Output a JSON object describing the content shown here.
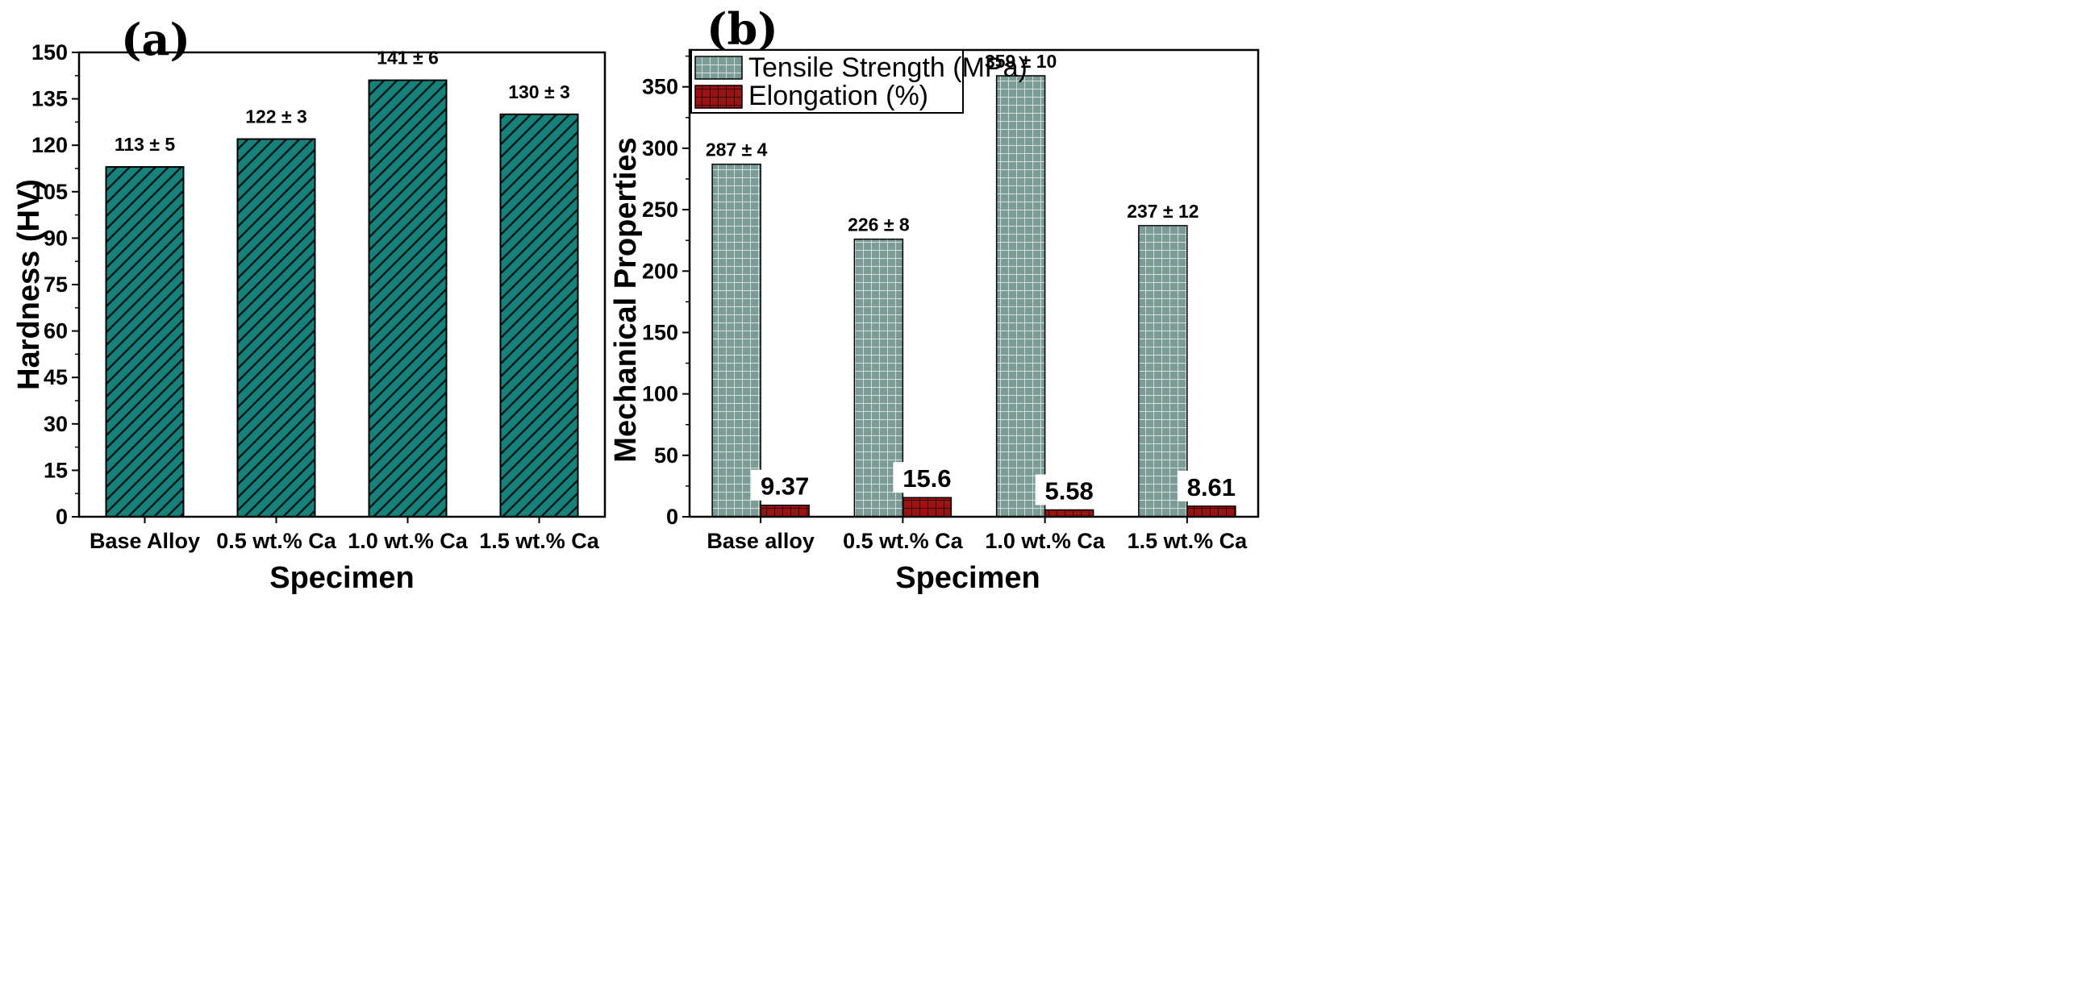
{
  "chart_data": [
    {
      "type": "bar",
      "title": "(a)",
      "categories": [
        "Base Alloy",
        "0.5 wt.% Ca",
        "1.0 wt.% Ca",
        "1.5 wt.% Ca"
      ],
      "values": [
        113,
        122,
        141,
        130
      ],
      "data_labels": [
        "113 ± 5",
        "122 ± 3",
        "141 ± 6",
        "130 ± 3"
      ],
      "xlabel": "Specimen",
      "ylabel": "Hardness (HV)",
      "ylim": [
        0,
        150
      ],
      "yticks": [
        0,
        15,
        30,
        45,
        60,
        75,
        90,
        105,
        120,
        135,
        150
      ],
      "color": "#17827b"
    },
    {
      "type": "bar",
      "title": "(b)",
      "categories": [
        "Base alloy",
        "0.5 wt.% Ca",
        "1.0 wt.% Ca",
        "1.5 wt.% Ca"
      ],
      "series": [
        {
          "name": "Tensile Strength (MPa)",
          "values": [
            287,
            226,
            359,
            237
          ],
          "data_labels": [
            "287 ± 4",
            "226 ± 8",
            "359 ± 10",
            "237 ± 12"
          ],
          "color": "#7a9b96"
        },
        {
          "name": "Elongation (%)",
          "values": [
            9.37,
            15.6,
            5.58,
            8.61
          ],
          "data_labels": [
            "9.37",
            "15.6",
            "5.58",
            "8.61"
          ],
          "color": "#9b1414"
        }
      ],
      "xlabel": "Specimen",
      "ylabel": "Mechanical Properties",
      "ylim": [
        0,
        380
      ],
      "yticks": [
        0,
        50,
        100,
        150,
        200,
        250,
        300,
        350
      ],
      "legend_position": "top-left"
    }
  ]
}
